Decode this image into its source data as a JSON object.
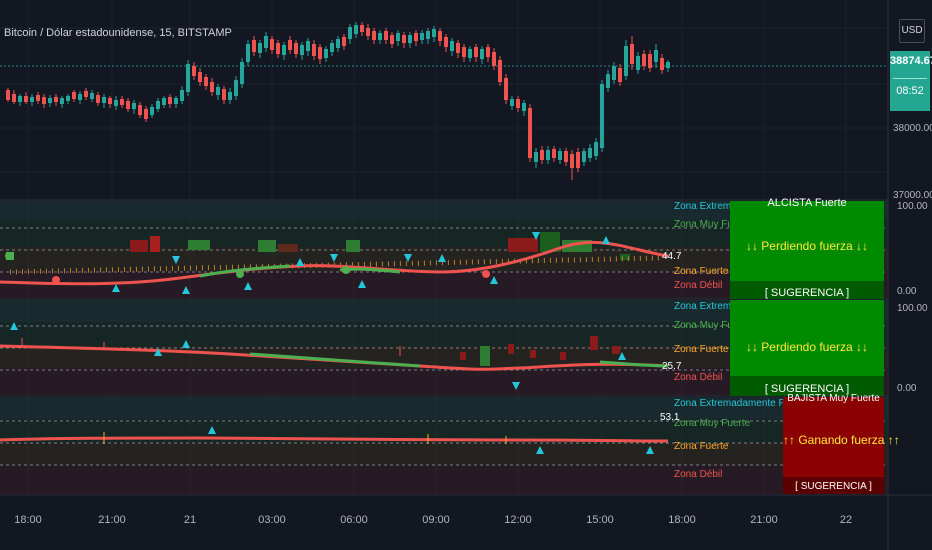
{
  "header": {
    "symbol_title": "Bitcoin / Dólar estadounidense, 15, BITSTAMP",
    "currency": "USD"
  },
  "price_axis": {
    "current_price": "38874.67",
    "countdown": "08:52",
    "ticks": [
      "38000.00",
      "37000.00"
    ]
  },
  "panes": [
    {
      "zones": [
        "Zona Extremadamente Fuerte",
        "Zona Muy Fuerte",
        "Zona Fuerte",
        "Zona Débil"
      ],
      "value": "44.7",
      "box": {
        "top": "ALCISTA Fuerte",
        "middle": "↓↓ Perdiendo fuerza ↓↓",
        "bottom": "[ SUGERENCIA ]",
        "color": "#008a00"
      },
      "axis_ticks": [
        "100.00",
        "0.00"
      ]
    },
    {
      "zones": [
        "Zona Extremadamente Fuerte",
        "Zona Muy Fuerte",
        "Zona Fuerte",
        "Zona Débil"
      ],
      "value": "25.7",
      "box": {
        "top": "",
        "middle": "↓↓ Perdiendo fuerza ↓↓",
        "bottom": "[ SUGERENCIA ]",
        "color": "#008a00"
      },
      "axis_ticks": [
        "100.00",
        "0.00"
      ]
    },
    {
      "zones": [
        "Zona Extremadamente Fuerte",
        "Zona Muy Fuerte",
        "Zona Fuerte",
        "Zona Débil"
      ],
      "value": "53.1",
      "box": {
        "top": "BAJISTA Muy Fuerte",
        "middle": "↑↑ Ganando fuerza ↑↑",
        "bottom": "[ SUGERENCIA ]",
        "color": "#8b0000"
      },
      "axis_ticks": []
    }
  ],
  "time_axis": [
    "18:00",
    "21:00",
    "21",
    "03:00",
    "06:00",
    "09:00",
    "12:00",
    "15:00",
    "18:00",
    "21:00",
    "22"
  ],
  "colors": {
    "up": "#26a69a",
    "down": "#ef5350",
    "background": "#131722"
  }
}
